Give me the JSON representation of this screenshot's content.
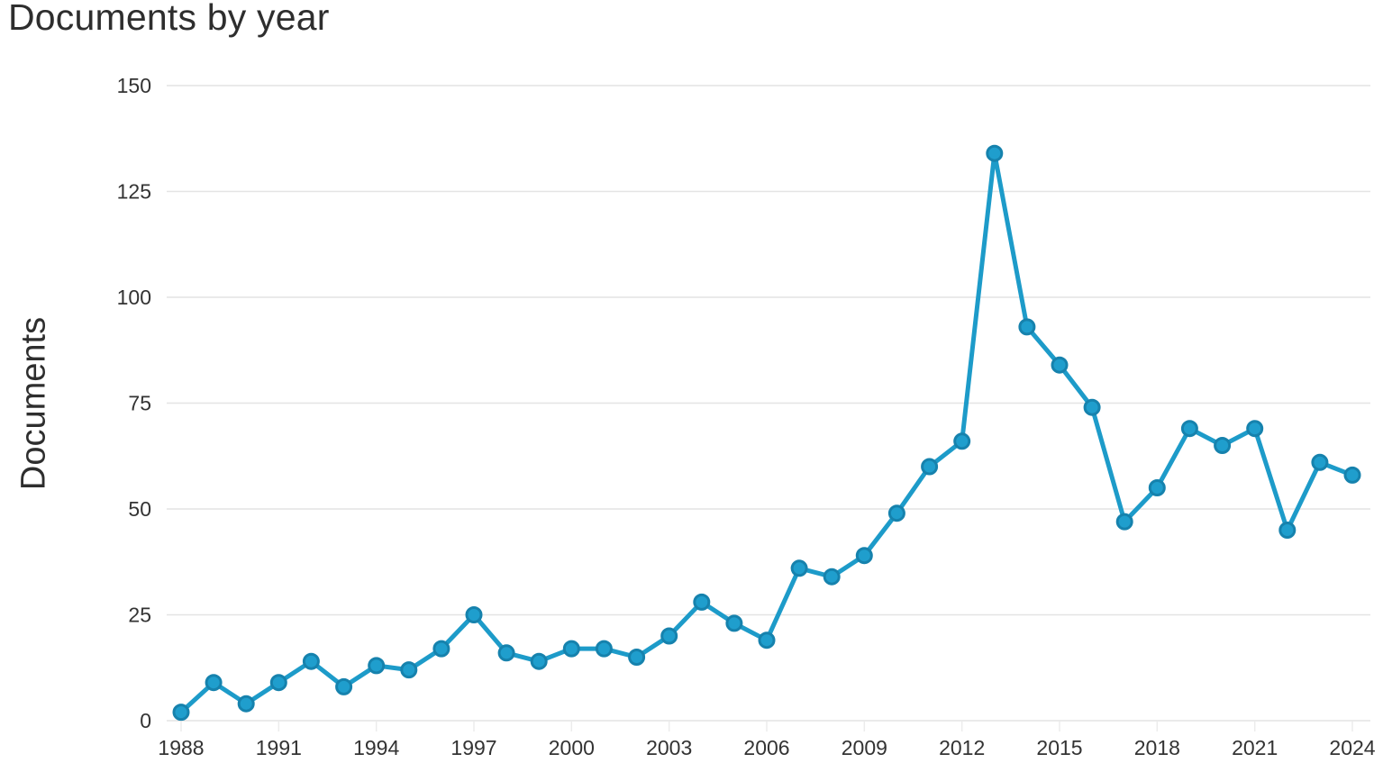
{
  "header": {
    "title": "Documents by year"
  },
  "chart_data": {
    "type": "line",
    "title": "Documents by year",
    "xlabel": "",
    "ylabel": "Documents",
    "x": [
      1988,
      1989,
      1990,
      1991,
      1992,
      1993,
      1994,
      1995,
      1996,
      1997,
      1998,
      1999,
      2000,
      2001,
      2002,
      2003,
      2004,
      2005,
      2006,
      2007,
      2008,
      2009,
      2010,
      2011,
      2012,
      2013,
      2014,
      2015,
      2016,
      2017,
      2018,
      2019,
      2020,
      2021,
      2022,
      2023,
      2024
    ],
    "values": [
      2,
      9,
      4,
      9,
      14,
      8,
      13,
      12,
      17,
      25,
      16,
      14,
      17,
      17,
      15,
      20,
      28,
      23,
      19,
      36,
      34,
      39,
      49,
      60,
      66,
      134,
      93,
      84,
      74,
      47,
      55,
      69,
      65,
      69,
      45,
      61,
      58
    ],
    "series_name": "Documents",
    "y_ticks": [
      0,
      25,
      50,
      75,
      100,
      125,
      150
    ],
    "x_tick_step": 3,
    "ylim": [
      0,
      150
    ],
    "grid": "horizontal",
    "legend": "none",
    "marker": "circle",
    "line_color": "#1d9bc9",
    "marker_fill": "#1f9ecd",
    "marker_stroke": "#1682ad",
    "grid_color": "#e4e4e4",
    "tick_color": "#ececec",
    "text_color": "#333333"
  }
}
